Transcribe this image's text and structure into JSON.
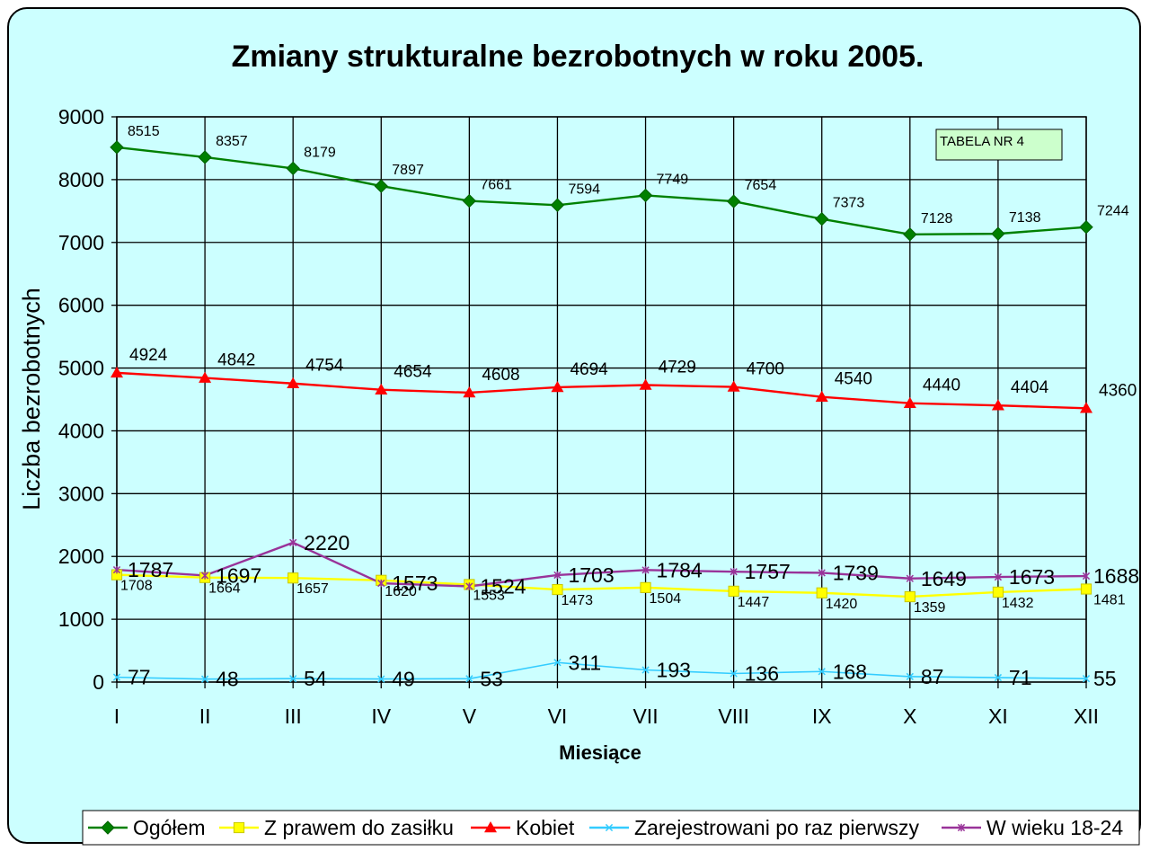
{
  "chart_data": {
    "type": "line",
    "title": "Zmiany strukturalne bezrobotnych w roku 2005.",
    "xlabel": "Miesiące",
    "ylabel": "Liczba bezrobotnych",
    "categories": [
      "I",
      "II",
      "III",
      "IV",
      "V",
      "VI",
      "VII",
      "VIII",
      "IX",
      "X",
      "XI",
      "XII"
    ],
    "ylim": [
      0,
      9000
    ],
    "yticks": [
      0,
      1000,
      2000,
      3000,
      4000,
      5000,
      6000,
      7000,
      8000,
      9000
    ],
    "grid": true,
    "legend_position": "bottom",
    "annotation": "TABELA NR 4",
    "series": [
      {
        "name": "Ogółem",
        "color": "#008000",
        "marker": "diamond",
        "values": [
          8515,
          8357,
          8179,
          7897,
          7661,
          7594,
          7749,
          7654,
          7373,
          7128,
          7138,
          7244
        ]
      },
      {
        "name": "Z prawem do zasiłku",
        "color": "#ffff00",
        "marker": "square",
        "values": [
          1708,
          1664,
          1657,
          1620,
          1553,
          1473,
          1504,
          1447,
          1420,
          1359,
          1432,
          1481
        ]
      },
      {
        "name": "Kobiet",
        "color": "#ff0000",
        "marker": "triangle",
        "values": [
          4924,
          4842,
          4754,
          4654,
          4608,
          4694,
          4729,
          4700,
          4540,
          4440,
          4404,
          4360
        ]
      },
      {
        "name": "Zarejestrowani po raz pierwszy",
        "color": "#33ccff",
        "marker": "x",
        "values": [
          77,
          48,
          54,
          49,
          53,
          311,
          193,
          136,
          168,
          87,
          71,
          55
        ]
      },
      {
        "name": "W wieku 18-24",
        "color": "#993399",
        "marker": "star",
        "values": [
          1787,
          1697,
          2220,
          1573,
          1524,
          1703,
          1784,
          1757,
          1739,
          1649,
          1673,
          1688
        ]
      }
    ]
  }
}
